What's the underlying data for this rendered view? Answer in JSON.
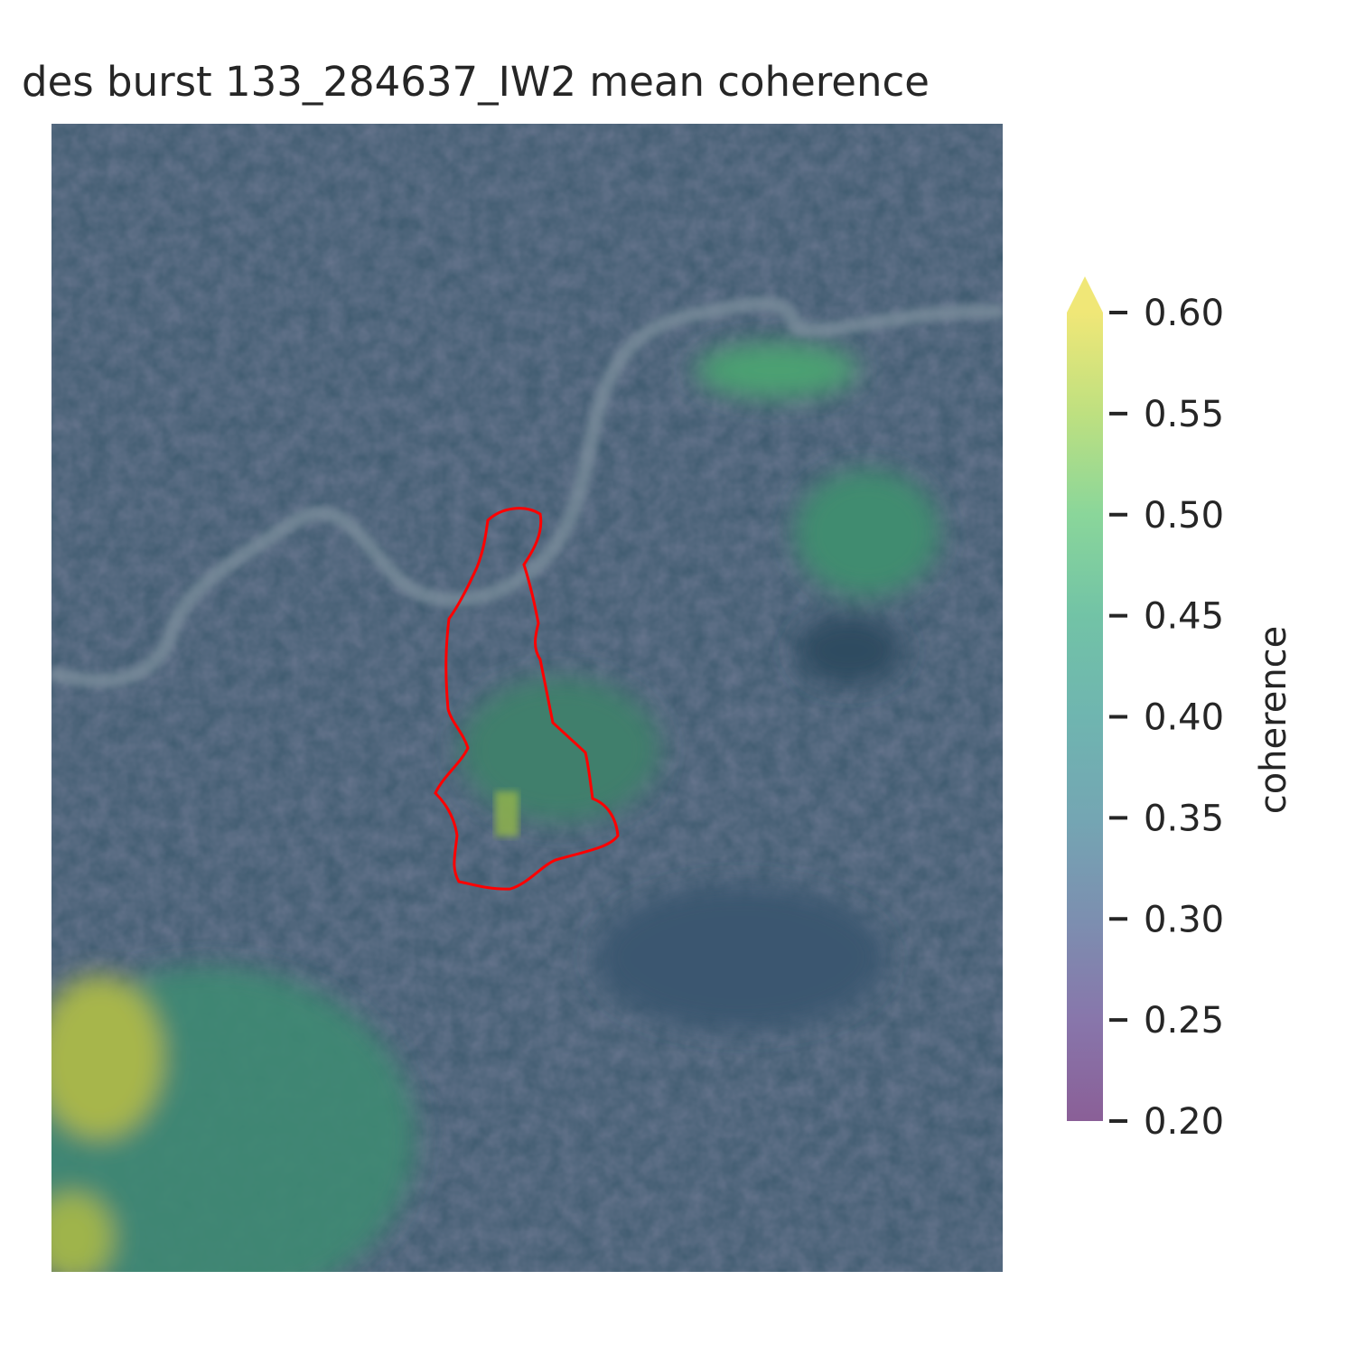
{
  "chart_data": {
    "type": "heatmap",
    "title": "des burst 133_284637_IW2 mean coherence",
    "colorbar": {
      "label": "coherence",
      "ticks": [
        "0.60",
        "0.55",
        "0.50",
        "0.45",
        "0.40",
        "0.35",
        "0.30",
        "0.25",
        "0.20"
      ],
      "range": [
        0.2,
        0.6
      ],
      "extend": "max",
      "colormap": "viridis"
    },
    "overlay": {
      "type": "outline",
      "color": "#ff0000"
    },
    "axes_visible": false
  }
}
